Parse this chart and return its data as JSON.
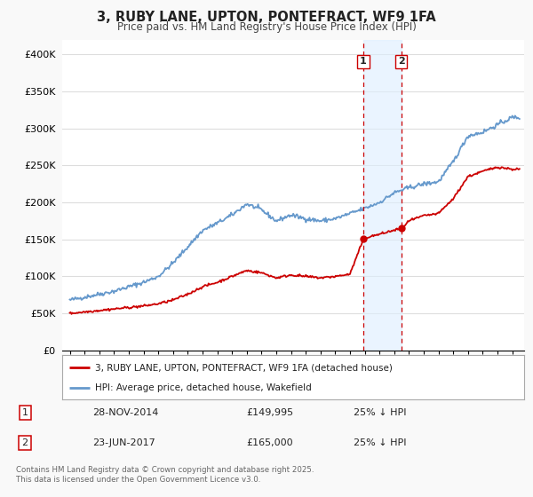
{
  "title": "3, RUBY LANE, UPTON, PONTEFRACT, WF9 1FA",
  "subtitle": "Price paid vs. HM Land Registry's House Price Index (HPI)",
  "ylim": [
    0,
    420000
  ],
  "yticks": [
    0,
    50000,
    100000,
    150000,
    200000,
    250000,
    300000,
    350000,
    400000
  ],
  "ytick_labels": [
    "£0",
    "£50K",
    "£100K",
    "£150K",
    "£200K",
    "£250K",
    "£300K",
    "£350K",
    "£400K"
  ],
  "legend_label_red": "3, RUBY LANE, UPTON, PONTEFRACT, WF9 1FA (detached house)",
  "legend_label_blue": "HPI: Average price, detached house, Wakefield",
  "transaction1_date": "28-NOV-2014",
  "transaction1_price": "£149,995",
  "transaction1_hpi": "25% ↓ HPI",
  "transaction2_date": "23-JUN-2017",
  "transaction2_price": "£165,000",
  "transaction2_hpi": "25% ↓ HPI",
  "footer": "Contains HM Land Registry data © Crown copyright and database right 2025.\nThis data is licensed under the Open Government Licence v3.0.",
  "bg_color": "#f9f9f9",
  "plot_bg_color": "#ffffff",
  "red_color": "#cc0000",
  "blue_color": "#6699cc",
  "shade_color": "#ddeeff",
  "vline_color": "#cc0000",
  "grid_color": "#dddddd",
  "sale1_x": 2014.91,
  "sale2_x": 2017.48
}
